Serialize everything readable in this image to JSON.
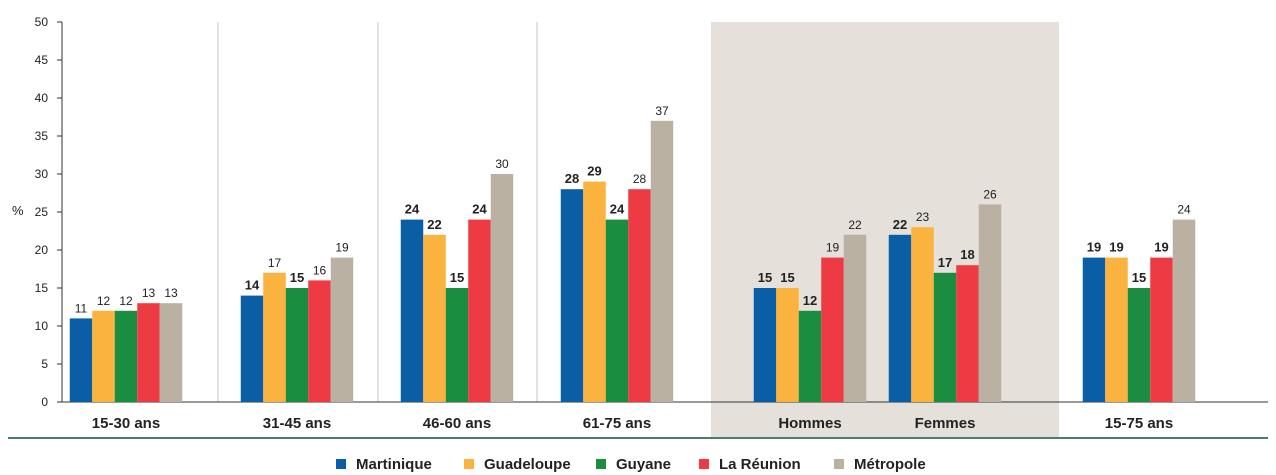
{
  "chart_data": {
    "type": "bar",
    "ylabel": "%",
    "ylim": [
      0,
      50
    ],
    "yticks": [
      0,
      5,
      10,
      15,
      20,
      25,
      30,
      35,
      40,
      45,
      50
    ],
    "categories": [
      "15-30 ans",
      "31-45 ans",
      "46-60 ans",
      "61-75 ans",
      "Hommes",
      "Femmes",
      "15-75 ans"
    ],
    "highlighted_categories": [
      "Hommes",
      "Femmes"
    ],
    "highlight_color": "#e5e0d9",
    "legend_position": "bottom",
    "series": [
      {
        "name": "Martinique",
        "color": "#0a5ea5",
        "values": [
          11,
          14,
          24,
          28,
          15,
          22,
          19
        ],
        "label_bold": [
          false,
          true,
          true,
          true,
          true,
          true,
          true
        ]
      },
      {
        "name": "Guadeloupe",
        "color": "#fbb33f",
        "values": [
          12,
          17,
          22,
          29,
          15,
          23,
          19
        ],
        "label_bold": [
          false,
          false,
          true,
          true,
          true,
          false,
          true
        ]
      },
      {
        "name": "Guyane",
        "color": "#1b8d41",
        "values": [
          12,
          15,
          15,
          24,
          12,
          17,
          15
        ],
        "label_bold": [
          false,
          true,
          true,
          true,
          true,
          true,
          true
        ]
      },
      {
        "name": "La Réunion",
        "color": "#ee3a42",
        "values": [
          13,
          16,
          24,
          28,
          19,
          18,
          19
        ],
        "label_bold": [
          false,
          false,
          true,
          false,
          false,
          true,
          true
        ]
      },
      {
        "name": "Métropole",
        "color": "#bab1a3",
        "values": [
          13,
          19,
          30,
          37,
          22,
          26,
          24
        ],
        "label_bold": [
          false,
          false,
          false,
          false,
          false,
          false,
          false
        ]
      }
    ]
  }
}
